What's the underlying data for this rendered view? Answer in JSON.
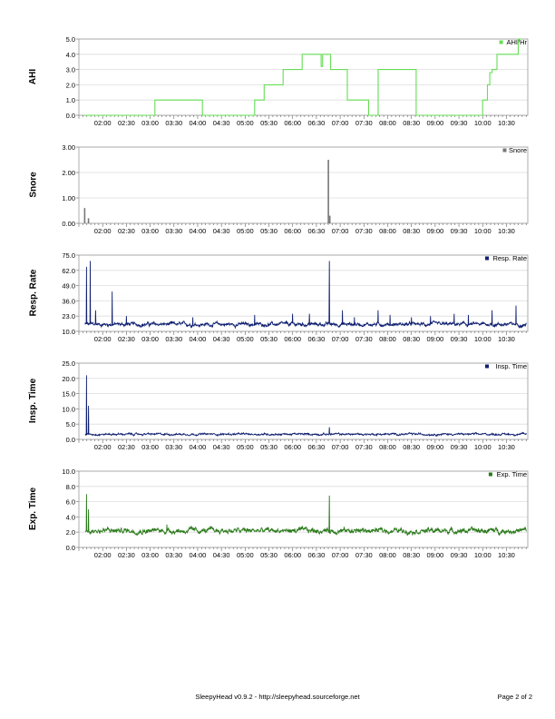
{
  "footer": {
    "app_credit": "SleepyHead v0.9.2 - http://sleepyhead.sourceforge.net",
    "page_number": "Page 2 of 2"
  },
  "x_ticks": [
    "02:00",
    "02:30",
    "03:00",
    "03:30",
    "04:00",
    "04:30",
    "05:00",
    "05:30",
    "06:00",
    "06:30",
    "07:00",
    "07:30",
    "08:00",
    "08:30",
    "09:00",
    "09:30",
    "10:00",
    "10:30"
  ],
  "chart_data": [
    {
      "type": "line",
      "ylabel": "AHI",
      "legend": "AHI/Hr",
      "color": "#66dd55",
      "ylim": [
        0,
        5
      ],
      "y_ticks": [
        "0.0",
        "1.0",
        "2.0",
        "3.0",
        "4.0",
        "5.0"
      ],
      "x": [
        1.6,
        3.1,
        3.1,
        4.1,
        4.1,
        5.2,
        5.2,
        5.4,
        5.4,
        5.8,
        5.8,
        6.2,
        6.2,
        6.6,
        6.6,
        6.63,
        6.63,
        6.8,
        6.8,
        7.15,
        7.15,
        7.6,
        7.6,
        7.8,
        7.8,
        8.6,
        8.6,
        8.95,
        8.95,
        10.0,
        10.0,
        10.1,
        10.1,
        10.15,
        10.15,
        10.2,
        10.2,
        10.3,
        10.3,
        10.75,
        10.75,
        10.82
      ],
      "y": [
        0,
        0,
        1,
        1,
        0,
        0,
        1,
        1,
        2,
        2,
        3,
        3,
        4,
        4,
        3.2,
        3.2,
        4,
        4,
        3,
        3,
        1,
        1,
        0,
        0,
        3,
        3,
        0,
        0,
        0,
        0,
        1,
        1,
        2,
        2,
        2.8,
        2.8,
        3,
        3,
        4,
        4,
        5,
        5
      ]
    },
    {
      "type": "bar",
      "ylabel": "Snore",
      "legend": "Snore",
      "color": "#777777",
      "ylim": [
        0,
        3
      ],
      "y_ticks": [
        "0.00",
        "1.00",
        "2.00",
        "3.00"
      ],
      "x": [
        1.62,
        1.7,
        6.75,
        6.78
      ],
      "y": [
        0.6,
        0.2,
        2.5,
        0.3
      ]
    },
    {
      "type": "line",
      "ylabel": "Resp. Rate",
      "legend": "Resp. Rate",
      "color": "#102070",
      "ylim": [
        10,
        75
      ],
      "y_ticks": [
        "10.0",
        "23.0",
        "36.0",
        "49.0",
        "62.0",
        "75.0"
      ],
      "base": 16,
      "noise": 2.5,
      "spikes": [
        [
          1.66,
          65
        ],
        [
          1.74,
          70
        ],
        [
          1.85,
          28
        ],
        [
          2.2,
          44
        ],
        [
          2.5,
          23
        ],
        [
          3.9,
          22
        ],
        [
          5.2,
          24
        ],
        [
          6.0,
          25
        ],
        [
          6.35,
          25
        ],
        [
          6.77,
          70
        ],
        [
          7.05,
          28
        ],
        [
          7.3,
          22
        ],
        [
          7.8,
          28
        ],
        [
          8.05,
          24
        ],
        [
          8.5,
          22
        ],
        [
          8.9,
          23
        ],
        [
          9.4,
          25
        ],
        [
          9.7,
          24
        ],
        [
          10.2,
          28
        ],
        [
          10.7,
          32
        ]
      ]
    },
    {
      "type": "line",
      "ylabel": "Insp. Time",
      "legend": "Insp. Time",
      "color": "#102070",
      "ylim": [
        0,
        25
      ],
      "y_ticks": [
        "0.0",
        "5.0",
        "10.0",
        "15.0",
        "20.0",
        "25.0"
      ],
      "base": 1.7,
      "noise": 0.5,
      "spikes": [
        [
          1.66,
          21
        ],
        [
          1.7,
          11
        ],
        [
          6.77,
          4
        ]
      ]
    },
    {
      "type": "line",
      "ylabel": "Exp. Time",
      "legend": "Exp. Time",
      "color": "#2a7a1a",
      "ylim": [
        0,
        10
      ],
      "y_ticks": [
        "0.0",
        "2.0",
        "4.0",
        "6.0",
        "8.0",
        "10.0"
      ],
      "base": 2.2,
      "noise": 0.55,
      "spikes": [
        [
          1.66,
          7
        ],
        [
          1.7,
          5
        ],
        [
          3.35,
          3.0
        ],
        [
          6.77,
          6.8
        ]
      ]
    }
  ]
}
